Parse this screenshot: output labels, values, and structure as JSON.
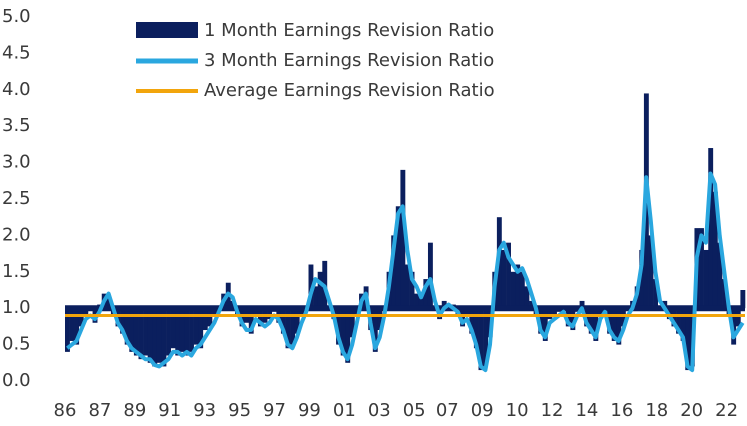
{
  "chart_data": {
    "type": "bar_line",
    "bar_baseline": 1.0,
    "xlim": [
      1986,
      2023
    ],
    "ylim": [
      0,
      5
    ],
    "yticks": [
      {
        "value": 0,
        "label": "0.0"
      },
      {
        "value": 0.5,
        "label": "0.5"
      },
      {
        "value": 1,
        "label": "1.0"
      },
      {
        "value": 1.5,
        "label": "1.5"
      },
      {
        "value": 2,
        "label": "2.0"
      },
      {
        "value": 2.5,
        "label": "2.5"
      },
      {
        "value": 3,
        "label": "3.0"
      },
      {
        "value": 3.5,
        "label": "3.5"
      },
      {
        "value": 4,
        "label": "4.0"
      },
      {
        "value": 4.5,
        "label": "4.5"
      },
      {
        "value": 5,
        "label": "5.0"
      }
    ],
    "xticks": [
      {
        "value": 1986,
        "label": "86"
      },
      {
        "value": 1987.9,
        "label": "87"
      },
      {
        "value": 1989.8,
        "label": "89"
      },
      {
        "value": 1991.7,
        "label": "91"
      },
      {
        "value": 1993.6,
        "label": "93"
      },
      {
        "value": 1995.5,
        "label": "95"
      },
      {
        "value": 1997.4,
        "label": "97"
      },
      {
        "value": 1999.3,
        "label": "99"
      },
      {
        "value": 2001.2,
        "label": "01"
      },
      {
        "value": 2003.1,
        "label": "03"
      },
      {
        "value": 2005,
        "label": "05"
      },
      {
        "value": 2006.8,
        "label": "07"
      },
      {
        "value": 2008.7,
        "label": "09"
      },
      {
        "value": 2010.6,
        "label": "10"
      },
      {
        "value": 2012.5,
        "label": "12"
      },
      {
        "value": 2014.4,
        "label": "14"
      },
      {
        "value": 2016.3,
        "label": "16"
      },
      {
        "value": 2018.2,
        "label": "18"
      },
      {
        "value": 2020.1,
        "label": "20"
      },
      {
        "value": 2022,
        "label": "22"
      }
    ],
    "x": [
      1986,
      1986.25,
      1986.5,
      1986.75,
      1987,
      1987.25,
      1987.5,
      1987.75,
      1988,
      1988.25,
      1988.5,
      1988.75,
      1989,
      1989.25,
      1989.5,
      1989.75,
      1990,
      1990.25,
      1990.5,
      1990.75,
      1991,
      1991.25,
      1991.5,
      1991.75,
      1992,
      1992.25,
      1992.5,
      1992.75,
      1993,
      1993.25,
      1993.5,
      1993.75,
      1994,
      1994.25,
      1994.5,
      1994.75,
      1995,
      1995.25,
      1995.5,
      1995.75,
      1996,
      1996.25,
      1996.5,
      1996.75,
      1997,
      1997.25,
      1997.5,
      1997.75,
      1998,
      1998.25,
      1998.5,
      1998.75,
      1999,
      1999.25,
      1999.5,
      1999.75,
      2000,
      2000.25,
      2000.5,
      2000.75,
      2001,
      2001.25,
      2001.5,
      2001.75,
      2002,
      2002.25,
      2002.5,
      2002.75,
      2003,
      2003.25,
      2003.5,
      2003.75,
      2004,
      2004.25,
      2004.5,
      2004.75,
      2005,
      2005.25,
      2005.5,
      2005.75,
      2006,
      2006.25,
      2006.5,
      2006.75,
      2007,
      2007.25,
      2007.5,
      2007.75,
      2008,
      2008.25,
      2008.5,
      2008.75,
      2009,
      2009.25,
      2009.5,
      2009.75,
      2010,
      2010.25,
      2010.5,
      2010.75,
      2011,
      2011.25,
      2011.5,
      2011.75,
      2012,
      2012.25,
      2012.5,
      2012.75,
      2013,
      2013.25,
      2013.5,
      2013.75,
      2014,
      2014.25,
      2014.5,
      2014.75,
      2015,
      2015.25,
      2015.5,
      2015.75,
      2016,
      2016.25,
      2016.5,
      2016.75,
      2017,
      2017.25,
      2017.5,
      2017.75,
      2018,
      2018.25,
      2018.5,
      2018.75,
      2019,
      2019.25,
      2019.5,
      2019.75,
      2020,
      2020.25,
      2020.5,
      2020.75,
      2021,
      2021.25,
      2021.5,
      2021.75,
      2022,
      2022.25,
      2022.5,
      2022.75
    ],
    "series": [
      {
        "name": "1 Month Earnings Revision Ratio",
        "color": "#0b1f5e",
        "kind": "bar",
        "values": [
          0.4,
          0.55,
          0.5,
          0.75,
          0.9,
          1.0,
          0.8,
          1.05,
          1.2,
          1.15,
          0.9,
          0.75,
          0.65,
          0.5,
          0.4,
          0.35,
          0.3,
          0.35,
          0.25,
          0.2,
          0.25,
          0.2,
          0.35,
          0.45,
          0.35,
          0.4,
          0.35,
          0.4,
          0.5,
          0.45,
          0.7,
          0.75,
          0.9,
          1.0,
          1.2,
          1.35,
          1.1,
          0.9,
          0.75,
          0.8,
          0.65,
          0.9,
          0.75,
          0.8,
          0.85,
          0.95,
          0.8,
          0.65,
          0.45,
          0.5,
          0.65,
          0.9,
          1.0,
          1.6,
          1.3,
          1.5,
          1.65,
          1.0,
          0.85,
          0.5,
          0.35,
          0.25,
          0.6,
          0.9,
          1.2,
          1.3,
          0.7,
          0.4,
          0.7,
          1.0,
          1.5,
          2.0,
          2.4,
          2.9,
          1.6,
          1.5,
          1.2,
          1.2,
          1.4,
          1.9,
          1.0,
          0.85,
          1.1,
          1.0,
          1.05,
          0.9,
          0.75,
          0.9,
          0.65,
          0.45,
          0.15,
          0.2,
          0.6,
          1.5,
          2.25,
          1.8,
          1.9,
          1.5,
          1.6,
          1.5,
          1.3,
          1.1,
          0.9,
          0.65,
          0.55,
          0.85,
          0.9,
          0.95,
          1.0,
          0.75,
          0.7,
          0.95,
          1.1,
          0.75,
          0.65,
          0.55,
          0.9,
          1.0,
          0.65,
          0.55,
          0.5,
          0.75,
          1.0,
          1.1,
          1.3,
          1.8,
          3.95,
          2.0,
          1.4,
          1.0,
          1.1,
          0.85,
          0.75,
          0.65,
          0.55,
          0.15,
          0.2,
          2.1,
          2.1,
          1.8,
          3.2,
          2.6,
          1.9,
          1.4,
          0.9,
          0.5,
          0.75,
          1.25
        ]
      },
      {
        "name": "3 Month Earnings Revision Ratio",
        "color": "#2aa7df",
        "kind": "line",
        "values": [
          0.45,
          0.5,
          0.55,
          0.7,
          0.85,
          0.9,
          0.85,
          0.95,
          1.1,
          1.2,
          1.0,
          0.8,
          0.7,
          0.55,
          0.45,
          0.4,
          0.35,
          0.3,
          0.3,
          0.22,
          0.2,
          0.25,
          0.3,
          0.4,
          0.4,
          0.35,
          0.4,
          0.35,
          0.45,
          0.5,
          0.6,
          0.7,
          0.8,
          0.95,
          1.1,
          1.2,
          1.15,
          0.95,
          0.8,
          0.7,
          0.7,
          0.85,
          0.8,
          0.75,
          0.8,
          0.9,
          0.85,
          0.7,
          0.5,
          0.45,
          0.6,
          0.8,
          0.95,
          1.2,
          1.4,
          1.35,
          1.3,
          1.1,
          0.9,
          0.6,
          0.4,
          0.3,
          0.5,
          0.8,
          1.1,
          1.2,
          0.8,
          0.45,
          0.6,
          0.9,
          1.3,
          1.8,
          2.3,
          2.4,
          1.8,
          1.4,
          1.3,
          1.15,
          1.3,
          1.4,
          1.1,
          0.9,
          1.0,
          1.05,
          1.0,
          0.95,
          0.8,
          0.85,
          0.7,
          0.5,
          0.2,
          0.15,
          0.5,
          1.3,
          1.8,
          1.9,
          1.7,
          1.6,
          1.5,
          1.55,
          1.4,
          1.2,
          1.0,
          0.7,
          0.6,
          0.8,
          0.85,
          0.9,
          0.95,
          0.8,
          0.75,
          0.9,
          1.0,
          0.8,
          0.7,
          0.6,
          0.85,
          0.95,
          0.7,
          0.6,
          0.55,
          0.7,
          0.9,
          1.0,
          1.2,
          1.6,
          2.8,
          2.2,
          1.5,
          1.1,
          1.0,
          0.9,
          0.8,
          0.7,
          0.6,
          0.2,
          0.15,
          1.7,
          2.0,
          1.9,
          2.85,
          2.7,
          2.0,
          1.5,
          1.0,
          0.6,
          0.7,
          0.8
        ]
      }
    ],
    "average": {
      "name": "Average Earnings Revision Ratio",
      "color": "#f2a50c",
      "value": 0.9
    }
  }
}
